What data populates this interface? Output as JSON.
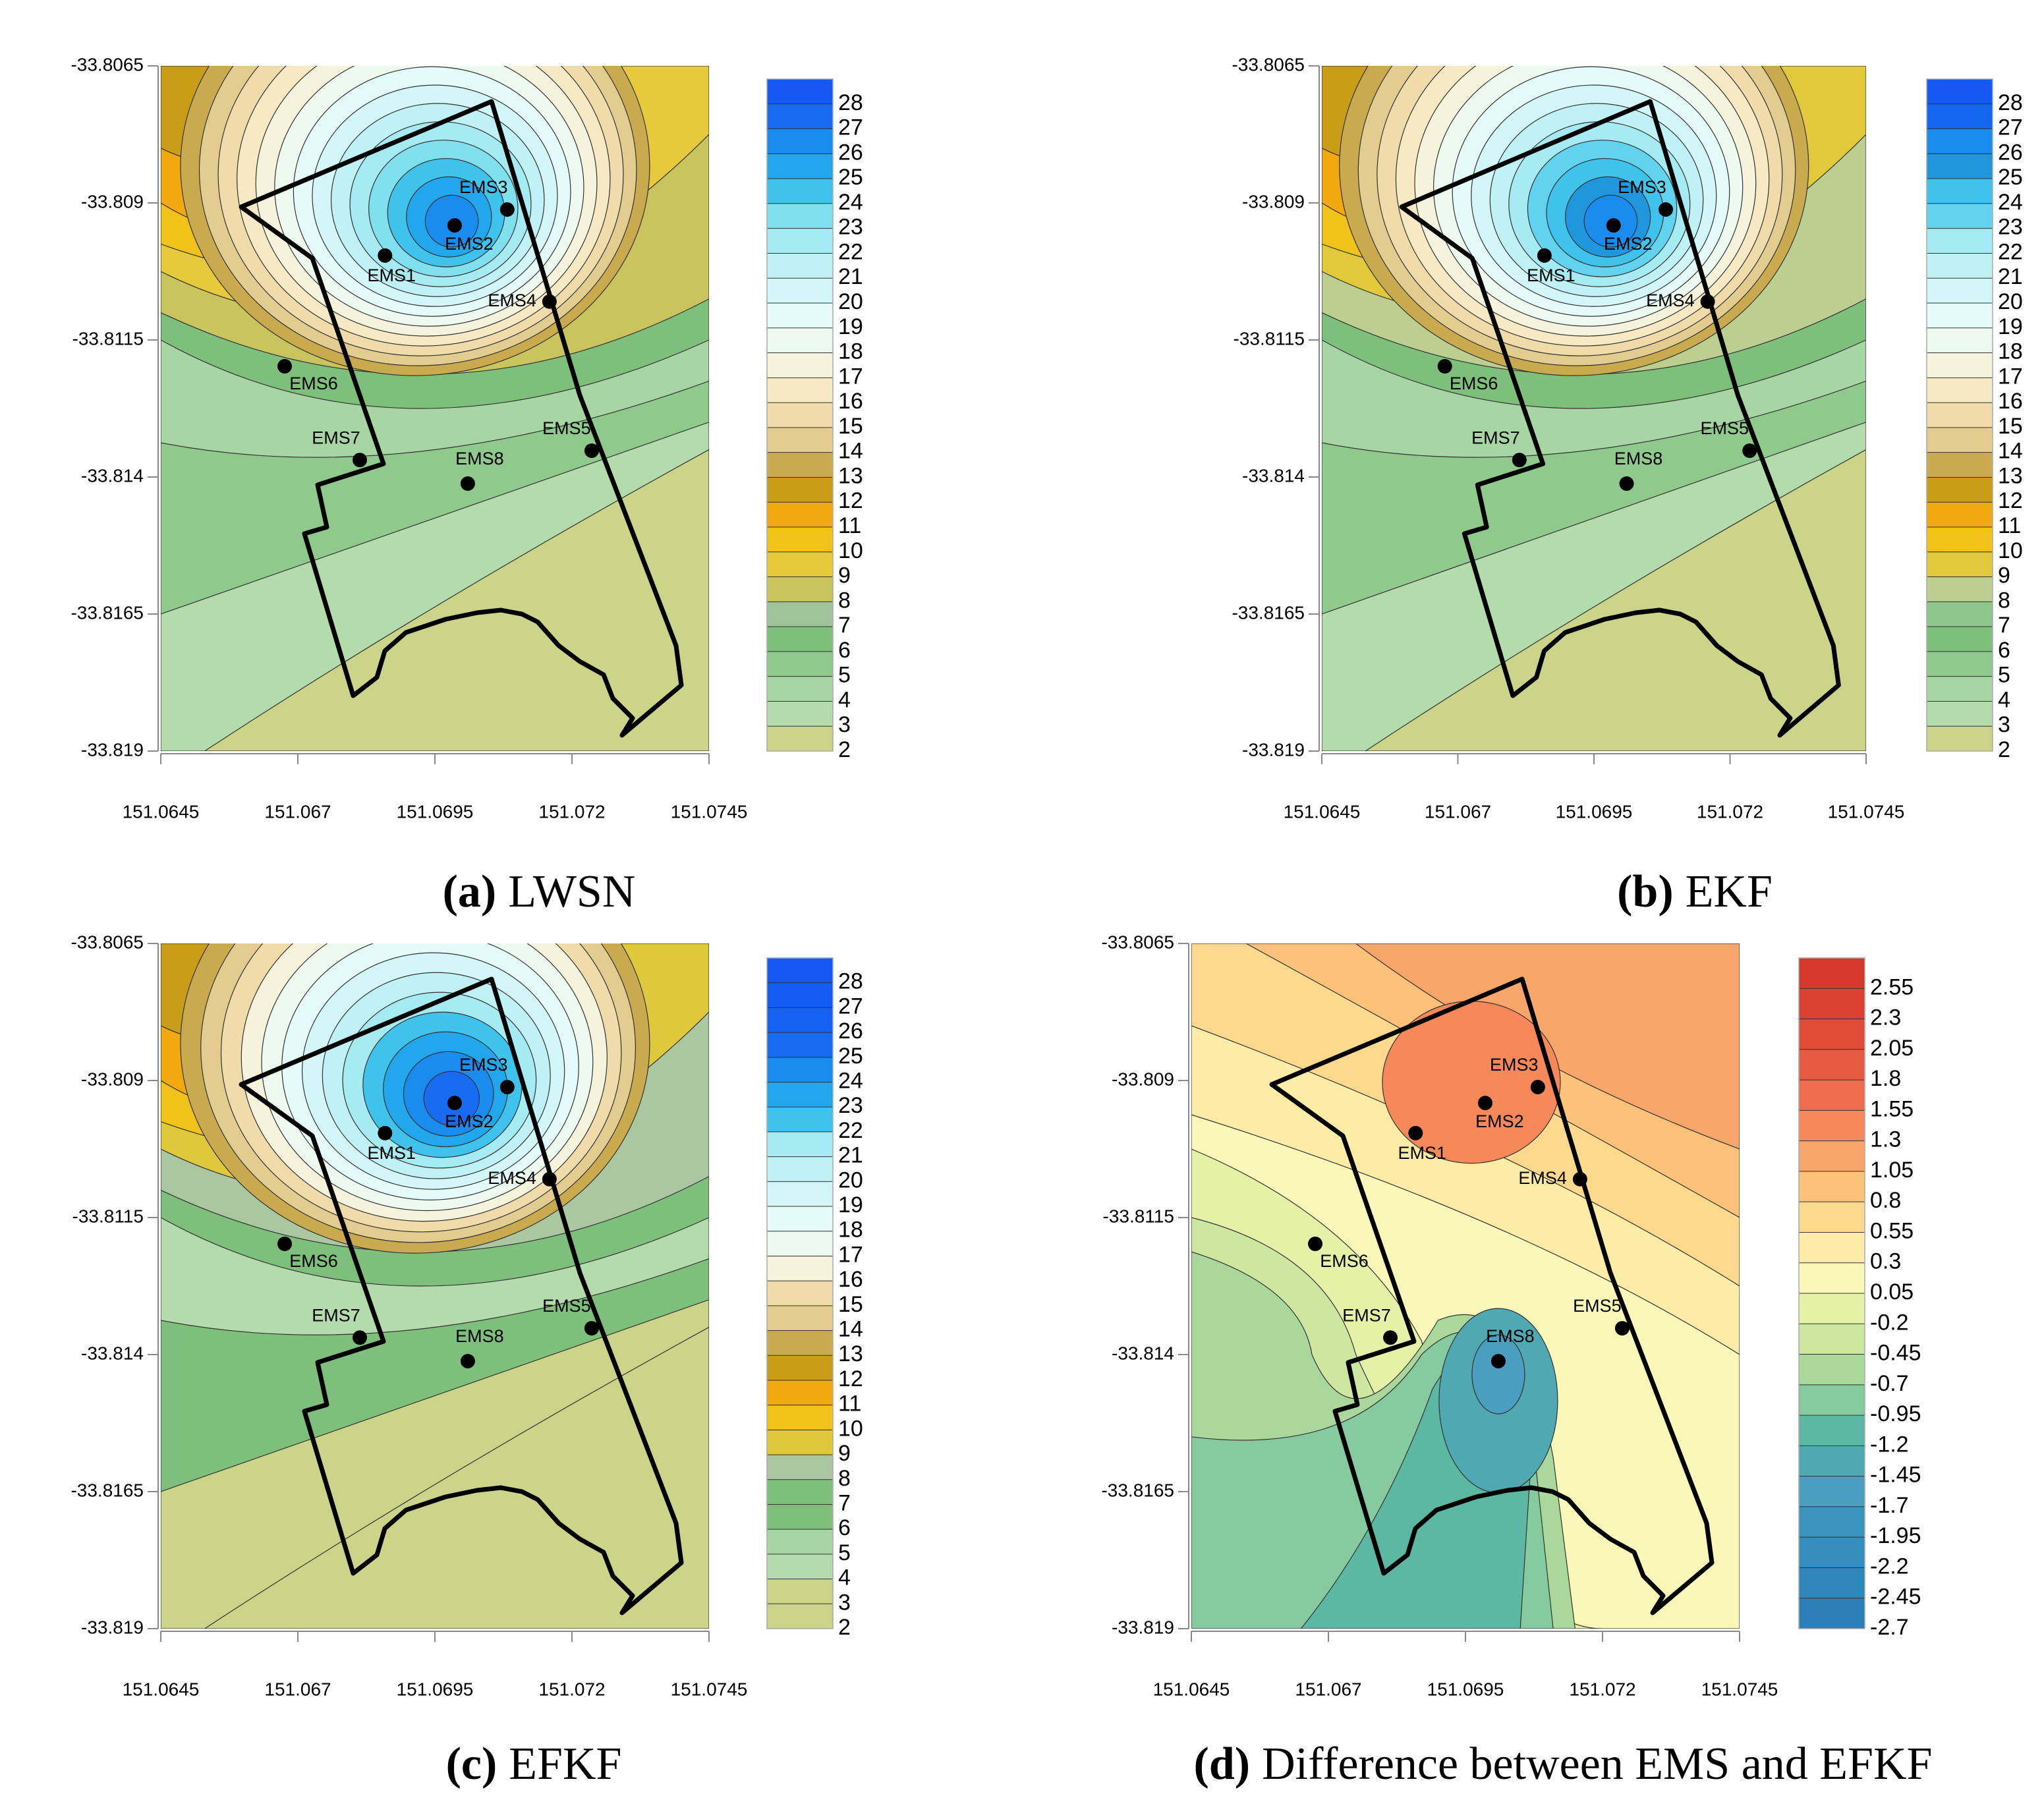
{
  "stations": {
    "names": [
      "EMS1",
      "EMS2",
      "EMS3",
      "EMS4",
      "EMS5",
      "EMS6",
      "EMS7",
      "EMS8"
    ],
    "lon": [
      151.06859,
      151.06986,
      151.07082,
      151.07159,
      151.07236,
      151.06676,
      151.06813,
      151.0701
    ],
    "lat": [
      -33.80996,
      -33.80941,
      -33.80912,
      -33.8108,
      -33.81352,
      -33.81198,
      -33.81369,
      -33.81412
    ]
  },
  "chart_data": [
    {
      "type": "contour",
      "panel": "(a)",
      "caption": "LWSN",
      "xlim": [
        151.0645,
        151.0745
      ],
      "ylim": [
        -33.819,
        -33.8065
      ],
      "xticks": [
        151.0645,
        151.067,
        151.0695,
        151.072,
        151.0745
      ],
      "yticks": [
        -33.819,
        -33.8165,
        -33.814,
        -33.8115,
        -33.809,
        -33.8065
      ],
      "colorbar": {
        "levels": [
          2,
          3,
          4,
          5,
          6,
          7,
          8,
          9,
          10,
          11,
          12,
          13,
          14,
          15,
          16,
          17,
          18,
          19,
          20,
          21,
          22,
          23,
          24,
          25,
          26,
          27,
          28
        ],
        "colors": [
          "#cbd488",
          "#b3dbab",
          "#a7d6a4",
          "#8fca8c",
          "#7dbf7b",
          "#9fc39a",
          "#c9c45e",
          "#e6ca3c",
          "#f0c21a",
          "#f2a90f",
          "#c99d17",
          "#c9aa4f",
          "#e3cc8f",
          "#f0dcab",
          "#f6e9c3",
          "#f6f3dd",
          "#eef9ef",
          "#e5fbfb",
          "#d3f6f9",
          "#c0f1f6",
          "#a7ebf2",
          "#80e0ee",
          "#3fc3ec",
          "#23a7ec",
          "#1a8cef",
          "#176cf2",
          "#1558f4"
        ]
      }
    },
    {
      "type": "contour",
      "panel": "(b)",
      "caption": "EKF",
      "xlim": [
        151.0645,
        151.0745
      ],
      "ylim": [
        -33.819,
        -33.8065
      ],
      "xticks": [
        151.0645,
        151.067,
        151.0695,
        151.072,
        151.0745
      ],
      "yticks": [
        -33.819,
        -33.8165,
        -33.814,
        -33.8115,
        -33.809,
        -33.8065
      ],
      "colorbar": {
        "levels": [
          2,
          3,
          4,
          5,
          6,
          7,
          8,
          9,
          10,
          11,
          12,
          13,
          14,
          15,
          16,
          17,
          18,
          19,
          20,
          21,
          22,
          23,
          24,
          25,
          26,
          27,
          28
        ],
        "colors": [
          "#cbd488",
          "#b3dbab",
          "#a7d6a4",
          "#8fca8c",
          "#7dbf7b",
          "#8fc68c",
          "#bccf90",
          "#e2c93c",
          "#f0c21a",
          "#f2a90f",
          "#c99d17",
          "#c9aa4f",
          "#e3cc8f",
          "#f0dcab",
          "#f6e9c3",
          "#f6f3dd",
          "#eef9ef",
          "#e5fbfb",
          "#d3f6f9",
          "#c0f1f6",
          "#a7ebf2",
          "#62d3ef",
          "#3fc3ec",
          "#2096dc",
          "#1a8cef",
          "#1466f0",
          "#1558f4"
        ]
      }
    },
    {
      "type": "contour",
      "panel": "(c)",
      "caption": "EFKF",
      "xlim": [
        151.0645,
        151.0745
      ],
      "ylim": [
        -33.819,
        -33.8065
      ],
      "xticks": [
        151.0645,
        151.067,
        151.0695,
        151.072,
        151.0745
      ],
      "yticks": [
        -33.819,
        -33.8165,
        -33.814,
        -33.8115,
        -33.809,
        -33.8065
      ],
      "colorbar": {
        "levels": [
          2,
          3,
          4,
          5,
          6,
          7,
          8,
          9,
          10,
          11,
          12,
          13,
          14,
          15,
          16,
          17,
          18,
          19,
          20,
          21,
          22,
          23,
          24,
          25,
          26,
          27,
          28
        ],
        "colors": [
          "#cbd488",
          "#cbd488",
          "#b3dbab",
          "#a7d6a4",
          "#7dbf7b",
          "#7dbf7b",
          "#abc7a2",
          "#e0c83c",
          "#f0c21a",
          "#f2a90f",
          "#c99d17",
          "#c9aa4f",
          "#e3cc8f",
          "#f0dcab",
          "#f6f3dd",
          "#eef9ef",
          "#e5fbfb",
          "#d3f6f9",
          "#c0f1f6",
          "#a7ebf2",
          "#3fc3ec",
          "#23a7ec",
          "#1a8cef",
          "#176cf2",
          "#1662f2",
          "#155cf3",
          "#1558f4"
        ]
      }
    },
    {
      "type": "contour",
      "panel": "(d)",
      "caption": "Difference between EMS and EFKF",
      "xlim": [
        151.0645,
        151.0745
      ],
      "ylim": [
        -33.819,
        -33.8065
      ],
      "xticks": [
        151.0645,
        151.067,
        151.0695,
        151.072,
        151.0745
      ],
      "yticks": [
        -33.819,
        -33.8165,
        -33.814,
        -33.8115,
        -33.809,
        -33.8065
      ],
      "colorbar": {
        "levels": [
          -2.7,
          -2.45,
          -2.2,
          -1.95,
          -1.7,
          -1.45,
          -1.2,
          -0.95,
          -0.7,
          -0.45,
          -0.2,
          0.05,
          0.3,
          0.55,
          0.8,
          1.05,
          1.3,
          1.55,
          1.8,
          2.05,
          2.3,
          2.55
        ],
        "colors": [
          "#2c7fb8",
          "#2f86ba",
          "#348dbc",
          "#3a94bd",
          "#4a9fc0",
          "#4fa8b2",
          "#5cb8a3",
          "#86cba0",
          "#aad89c",
          "#cde7a0",
          "#e6f1a8",
          "#f9f8b8",
          "#fdeca6",
          "#fdd98e",
          "#fcc27a",
          "#f9a66a",
          "#f6885a",
          "#ef6d4d",
          "#e85a42",
          "#e24d3a",
          "#dc4232",
          "#d6392b"
        ]
      }
    }
  ]
}
